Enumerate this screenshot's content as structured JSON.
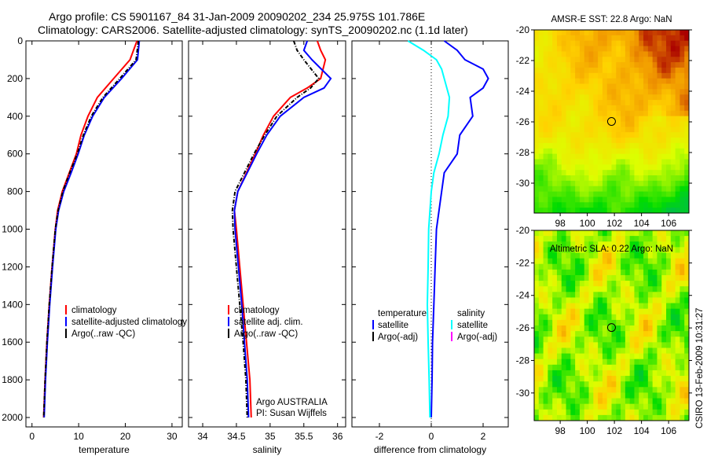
{
  "title_line1": "Argo profile: CS 5901167_84 31-Jan-2009 20090202_234 25.975S 101.786E",
  "title_line2": "Climatology: CARS2006. Satellite-adjusted climatology: synTS_20090202.nc (1.1d later)",
  "side_stamp": "CSIRO 13-Feb-2009 10:31:27",
  "colors": {
    "red": "#ff0000",
    "blue": "#0000ff",
    "black": "#000000",
    "cyan": "#00ffff",
    "magenta": "#ff00ff"
  },
  "chart_data": [
    {
      "type": "line",
      "xlabel": "temperature",
      "ylabel": "",
      "xlim": [
        -1.3,
        32.2
      ],
      "ylim": [
        2050,
        0
      ],
      "xticks": [
        0,
        10,
        20,
        30
      ],
      "yticks": [
        0,
        200,
        400,
        600,
        800,
        1000,
        1200,
        1400,
        1600,
        1800,
        2000
      ],
      "depth": [
        0,
        100,
        200,
        300,
        400,
        500,
        600,
        700,
        800,
        900,
        1000,
        1200,
        1400,
        1600,
        1800,
        2000
      ],
      "series": [
        {
          "name": "climatology",
          "color": "#ff0000",
          "values": [
            22.5,
            21,
            17.5,
            14,
            12,
            10.5,
            9.5,
            8,
            6.5,
            5.5,
            5,
            4.3,
            3.7,
            3.2,
            2.8,
            2.5
          ]
        },
        {
          "name": "satellite-adjusted climatology",
          "color": "#0000ff",
          "values": [
            23,
            22.6,
            19.2,
            15.5,
            13,
            11.2,
            9.9,
            8.4,
            6.8,
            5.7,
            5.1,
            4.4,
            3.8,
            3.3,
            2.9,
            2.6
          ]
        },
        {
          "name": "Argo(..raw -QC)",
          "color": "#000000",
          "dash": true,
          "values": [
            22.8,
            22.3,
            18.8,
            15.2,
            12.7,
            11,
            9.7,
            8.1,
            6.6,
            5.6,
            5,
            4.3,
            3.7,
            3.2,
            2.8,
            2.5
          ]
        }
      ],
      "legend": [
        "climatology",
        "satellite-adjusted climatology",
        "Argo(..raw -QC)"
      ]
    },
    {
      "type": "line",
      "xlabel": "salinity",
      "xlim": [
        33.79,
        36.12
      ],
      "ylim": [
        2050,
        0
      ],
      "xticks": [
        34,
        34.5,
        35,
        35.5,
        36
      ],
      "depth": [
        0,
        50,
        100,
        200,
        250,
        300,
        400,
        500,
        600,
        700,
        800,
        900,
        1000,
        1200,
        1400,
        1600,
        1800,
        2000
      ],
      "series": [
        {
          "name": "climatology",
          "color": "#ff0000",
          "values": [
            35.7,
            35.75,
            35.82,
            35.75,
            35.55,
            35.3,
            35.05,
            34.9,
            34.78,
            34.65,
            34.52,
            34.47,
            34.5,
            34.55,
            34.6,
            34.65,
            34.7,
            34.72
          ]
        },
        {
          "name": "satellite adj. clim.",
          "color": "#0000ff",
          "values": [
            35.55,
            35.5,
            35.62,
            35.9,
            35.8,
            35.5,
            35.15,
            34.95,
            34.8,
            34.66,
            34.52,
            34.47,
            34.48,
            34.53,
            34.58,
            34.62,
            34.66,
            34.68
          ]
        },
        {
          "name": "Argo(..raw -QC)",
          "color": "#000000",
          "dash": true,
          "values": [
            35.35,
            35.4,
            35.5,
            35.72,
            35.6,
            35.4,
            35.1,
            34.92,
            34.76,
            34.62,
            34.48,
            34.44,
            34.45,
            34.5,
            34.55,
            34.6,
            34.64,
            34.66
          ]
        }
      ],
      "legend": [
        "climatology",
        "satellite adj. clim.",
        "Argo(..raw -QC)"
      ],
      "annotation": [
        "Argo AUSTRALIA",
        "PI: Susan Wijffels"
      ]
    },
    {
      "type": "line",
      "xlabel": "difference from climatology",
      "xlim": [
        -3.06,
        2.97
      ],
      "ylim": [
        2050,
        0
      ],
      "xticks": [
        -2,
        0,
        2
      ],
      "depth": [
        0,
        50,
        100,
        150,
        200,
        250,
        300,
        400,
        500,
        600,
        700,
        800,
        1000,
        1200,
        1400,
        1600,
        1800,
        2000
      ],
      "series": [
        {
          "name": "temperature satellite",
          "color": "#0000ff",
          "values": [
            0.5,
            1.0,
            1.3,
            2.0,
            2.2,
            2.0,
            1.5,
            1.6,
            1.1,
            1.0,
            0.5,
            0.4,
            0.2,
            0.15,
            0.1,
            0.05,
            0.03,
            0
          ]
        },
        {
          "name": "salinity satellite",
          "color": "#00ffff",
          "values": [
            -0.9,
            -0.3,
            0.2,
            0.4,
            0.5,
            0.6,
            0.7,
            0.65,
            0.45,
            0.3,
            0.1,
            0,
            -0.1,
            -0.12,
            -0.15,
            -0.12,
            -0.08,
            -0.05
          ]
        }
      ],
      "legend_headers": [
        "temperature",
        "salinity"
      ],
      "legend": [
        "satellite",
        "Argo(-adj)",
        "satellite",
        "Argo(-adj)"
      ]
    },
    {
      "type": "heatmap",
      "title": "AMSR-E SST: 22.8 Argo: NaN",
      "xlim": [
        96.08,
        107.5
      ],
      "ylim": [
        -31.95,
        -20
      ],
      "xticks": [
        98,
        100,
        102,
        104,
        106
      ],
      "yticks": [
        -20,
        -22,
        -24,
        -26,
        -28,
        -30
      ],
      "ytick_labels": [
        "-20",
        "-22",
        "-24",
        "-26",
        "-28",
        "-30"
      ],
      "marker": [
        101.786,
        -25.975
      ]
    },
    {
      "type": "heatmap",
      "title": "Altimetric SLA: 0.22 Argo: NaN",
      "xlim": [
        96.08,
        107.5
      ],
      "ylim": [
        -31.7,
        -20
      ],
      "xticks": [
        98,
        100,
        102,
        104,
        106
      ],
      "yticks": [
        -20,
        -22,
        -24,
        -26,
        -28,
        -30
      ],
      "ytick_labels": [
        "-20",
        "-22",
        "-24",
        "-26",
        "-28",
        "-30"
      ],
      "marker": [
        101.786,
        -25.975
      ]
    }
  ]
}
